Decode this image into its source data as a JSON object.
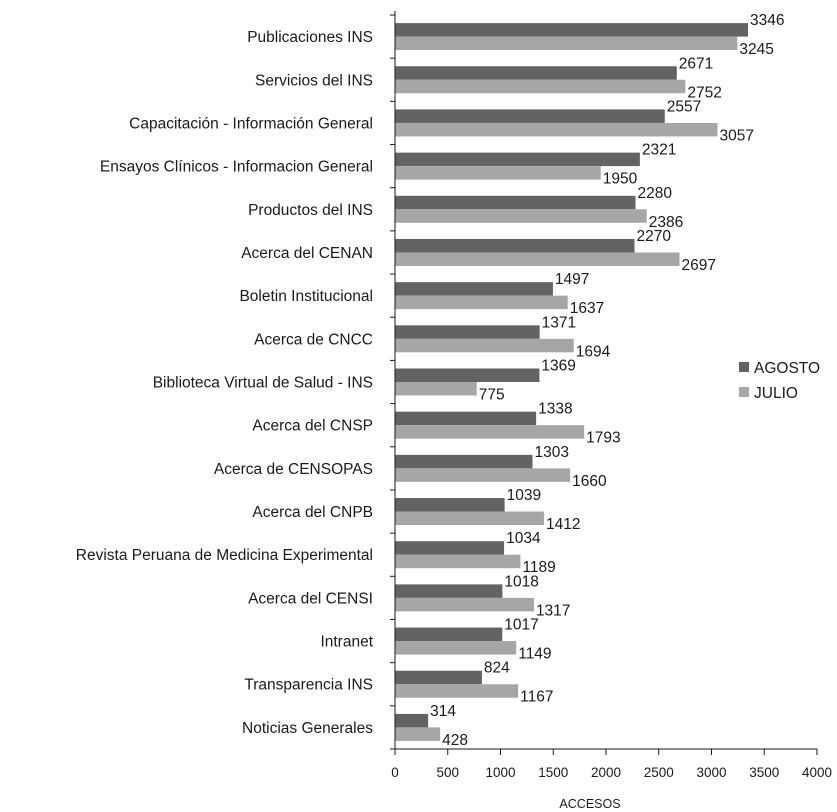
{
  "chart_data": {
    "type": "bar",
    "orientation": "horizontal",
    "xlabel": "ACCESOS",
    "xlim": [
      0,
      4000
    ],
    "xticks": [
      0,
      500,
      1000,
      1500,
      2000,
      2500,
      3000,
      3500,
      4000
    ],
    "grid": false,
    "legend_position": "right",
    "categories": [
      "Publicaciones INS",
      "Servicios del INS",
      "Capacitación - Información General",
      "Ensayos Clínicos - Informacion General",
      "Productos del INS",
      "Acerca del CENAN",
      "Boletin Institucional",
      "Acerca de CNCC",
      "Biblioteca Virtual de Salud - INS",
      "Acerca del CNSP",
      "Acerca de CENSOPAS",
      "Acerca del CNPB",
      "Revista Peruana de Medicina Experimental",
      "Acerca del CENSI",
      "Intranet",
      "Transparencia INS",
      "Noticias Generales"
    ],
    "series": [
      {
        "name": "AGOSTO",
        "color": "#636363",
        "values": [
          3346,
          2671,
          2557,
          2321,
          2280,
          2270,
          1497,
          1371,
          1369,
          1338,
          1303,
          1039,
          1034,
          1018,
          1017,
          824,
          314
        ]
      },
      {
        "name": "JULIO",
        "color": "#a6a6a6",
        "values": [
          3245,
          2752,
          3057,
          1950,
          2386,
          2697,
          1637,
          1694,
          775,
          1793,
          1660,
          1412,
          1189,
          1317,
          1149,
          1167,
          428
        ]
      }
    ]
  }
}
